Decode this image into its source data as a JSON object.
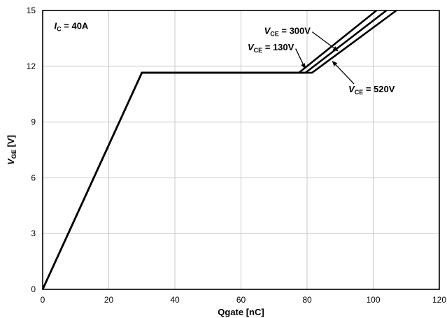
{
  "chart_data": {
    "type": "line",
    "xlabel": "Qgate [nC]",
    "ylabel_main": "V",
    "ylabel_sub": "GE",
    "ylabel_tail": " [V]",
    "xlim": [
      0,
      120
    ],
    "ylim": [
      0,
      15
    ],
    "x_ticks": [
      0,
      20,
      40,
      60,
      80,
      100,
      120
    ],
    "y_ticks": [
      0,
      3,
      6,
      9,
      12,
      15
    ],
    "grid": true,
    "condition": {
      "main": "I",
      "sub": "C",
      "tail": " = 40A"
    },
    "series": [
      {
        "name_main": "V",
        "name_sub": "CE",
        "name_tail": " = 130V",
        "x": [
          0,
          30,
          77.5,
          101
        ],
        "y": [
          0,
          11.65,
          11.65,
          15
        ]
      },
      {
        "name_main": "V",
        "name_sub": "CE",
        "name_tail": " = 300V",
        "x": [
          0,
          30,
          79.5,
          104
        ],
        "y": [
          0,
          11.65,
          11.65,
          15
        ]
      },
      {
        "name_main": "V",
        "name_sub": "CE",
        "name_tail": " = 520V",
        "x": [
          0,
          30,
          81.5,
          107
        ],
        "y": [
          0,
          11.65,
          11.65,
          15
        ]
      }
    ],
    "annotations": [
      {
        "series": 0,
        "anchor": [
          79.5,
          11.85
        ],
        "label_at": [
          62,
          12.85
        ]
      },
      {
        "series": 1,
        "anchor": [
          89.5,
          12.8
        ],
        "label_at": [
          67,
          13.75
        ]
      },
      {
        "series": 2,
        "anchor": [
          87.5,
          12.3
        ],
        "label_at": [
          92.5,
          10.6
        ]
      }
    ]
  }
}
